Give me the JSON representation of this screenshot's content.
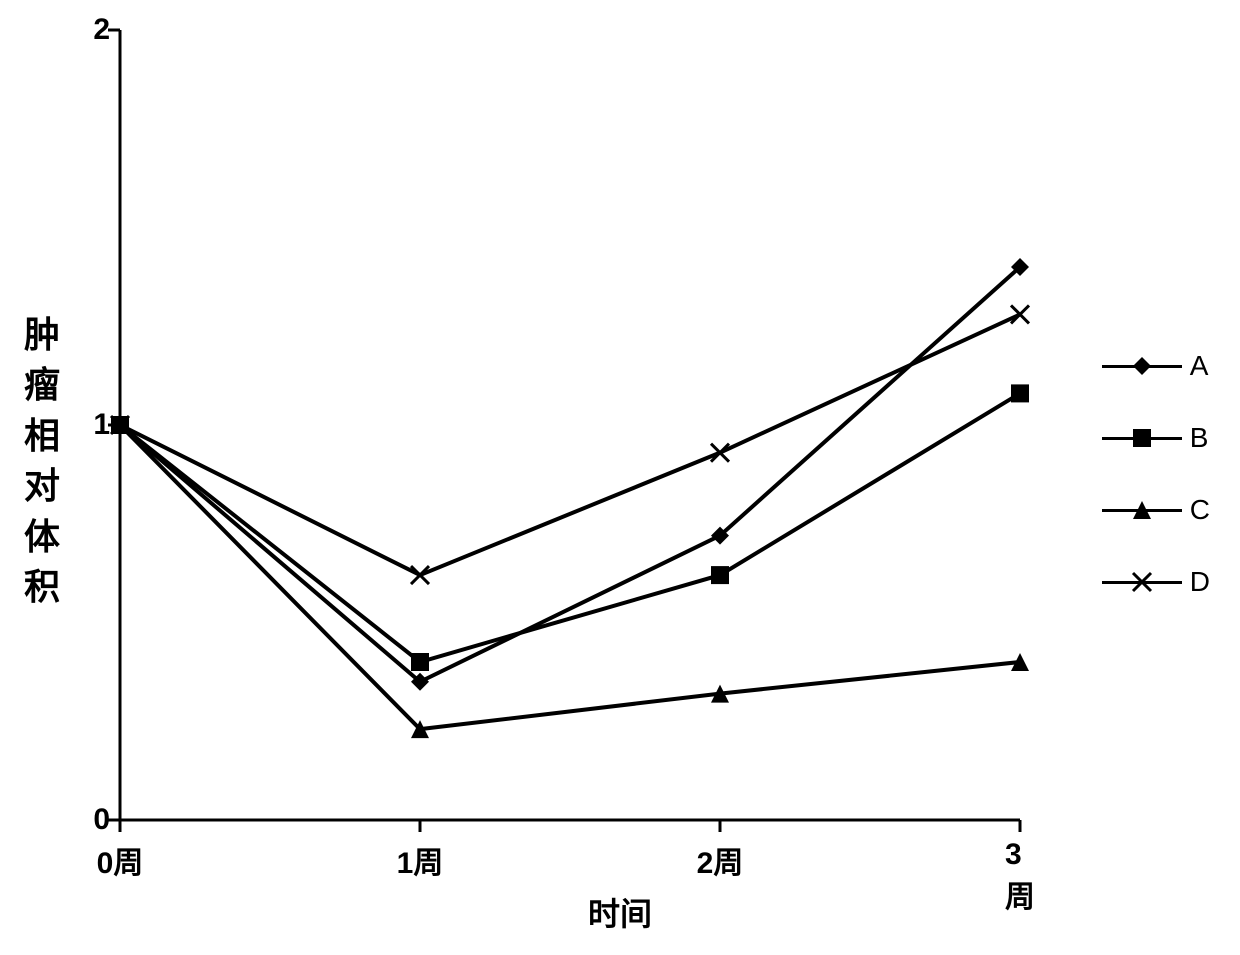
{
  "chart": {
    "type": "line",
    "title": "",
    "xlabel": "时间",
    "ylabel": "肿瘤相对体积",
    "ylabel_chars": [
      "肿",
      "瘤",
      "相",
      "对",
      "体",
      "积"
    ],
    "xlim": [
      0,
      3
    ],
    "ylim": [
      0,
      2
    ],
    "ytick_values": [
      0,
      1,
      2
    ],
    "ytick_labels": [
      "0",
      "1",
      "2"
    ],
    "xtick_labels": [
      "0周",
      "1周",
      "2周",
      "3周"
    ],
    "xtick_positions": [
      0,
      1,
      2,
      3
    ],
    "tick_length": 12,
    "axis_color": "#000000",
    "axis_width": 3,
    "line_color": "#000000",
    "line_width": 4,
    "marker_size": 18,
    "background_color": "#ffffff",
    "label_fontsize": 32,
    "tick_fontsize": 30,
    "legend_fontsize": 28,
    "ylabel_fontsize": 36,
    "series": [
      {
        "name": "A",
        "marker": "diamond",
        "x": [
          0,
          1,
          2,
          3
        ],
        "y": [
          1.0,
          0.35,
          0.72,
          1.4
        ]
      },
      {
        "name": "B",
        "marker": "square",
        "x": [
          0,
          1,
          2,
          3
        ],
        "y": [
          1.0,
          0.4,
          0.62,
          1.08
        ]
      },
      {
        "name": "C",
        "marker": "triangle",
        "x": [
          0,
          1,
          2,
          3
        ],
        "y": [
          1.0,
          0.23,
          0.32,
          0.4
        ]
      },
      {
        "name": "D",
        "marker": "x",
        "x": [
          0,
          1,
          2,
          3
        ],
        "y": [
          1.0,
          0.62,
          0.93,
          1.28
        ]
      }
    ]
  }
}
